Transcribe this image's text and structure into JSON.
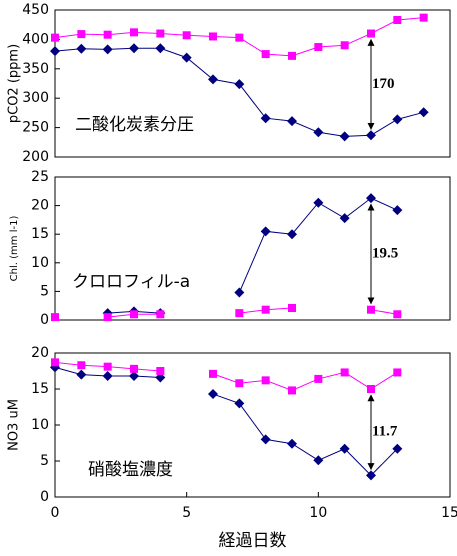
{
  "chart_data": [
    {
      "type": "line",
      "ylabel": "pCO2 (ppm)",
      "label": "二酸化炭素分圧",
      "annotation": "170",
      "x": [
        0,
        1,
        2,
        3,
        4,
        5,
        6,
        7,
        8,
        9,
        10,
        11,
        12,
        13,
        14
      ],
      "xlim": [
        0,
        15
      ],
      "ylim": [
        200,
        450
      ],
      "yticks": [
        200,
        250,
        300,
        350,
        400,
        450
      ],
      "series": [
        {
          "color": "#000080",
          "marker": "diamond",
          "values": [
            380,
            384,
            383,
            385,
            385,
            369,
            332,
            324,
            266,
            261,
            242,
            235,
            237,
            264,
            276
          ]
        },
        {
          "color": "#ff00ff",
          "marker": "square",
          "values": [
            403,
            409,
            408,
            412,
            410,
            407,
            405,
            403,
            375,
            372,
            387,
            390,
            410,
            433,
            437
          ]
        }
      ]
    },
    {
      "type": "line",
      "ylabel": "Chl. (mm l-1)",
      "label": "クロロフィル-a",
      "annotation": "19.5",
      "x": [
        0,
        1,
        2,
        3,
        4,
        5,
        6,
        7,
        8,
        9,
        10,
        11,
        12,
        13
      ],
      "xlim": [
        0,
        15
      ],
      "ylim": [
        0,
        25
      ],
      "yticks": [
        0,
        5,
        10,
        15,
        20,
        25
      ],
      "series": [
        {
          "color": "#000080",
          "marker": "diamond",
          "values": [
            null,
            null,
            1.2,
            1.5,
            1.2,
            null,
            null,
            4.8,
            15.5,
            15,
            20.5,
            17.8,
            21.3,
            19.2
          ]
        },
        {
          "color": "#ff00ff",
          "marker": "square",
          "values": [
            0.5,
            null,
            0.5,
            1,
            1,
            null,
            null,
            1.2,
            1.8,
            2.1,
            null,
            null,
            1.8,
            1
          ]
        }
      ]
    },
    {
      "type": "line",
      "ylabel": "NO3 uM",
      "label": "硝酸塩濃度",
      "annotation": "11.7",
      "xlabel": "経過日数",
      "x": [
        0,
        1,
        2,
        3,
        4,
        5,
        6,
        7,
        8,
        9,
        10,
        11,
        12,
        13
      ],
      "xlim": [
        0,
        15
      ],
      "xticks": [
        0,
        5,
        10,
        15
      ],
      "ylim": [
        0,
        20
      ],
      "yticks": [
        0,
        5,
        10,
        15,
        20
      ],
      "series": [
        {
          "color": "#000080",
          "marker": "diamond",
          "values": [
            18,
            17,
            16.8,
            16.8,
            16.6,
            null,
            14.3,
            13,
            8,
            7.4,
            5.1,
            6.7,
            3,
            6.7
          ]
        },
        {
          "color": "#ff00ff",
          "marker": "square",
          "values": [
            18.7,
            18.3,
            18.1,
            17.8,
            17.5,
            null,
            17.1,
            15.8,
            16.2,
            14.8,
            16.4,
            17.3,
            15,
            17.3
          ]
        }
      ]
    }
  ]
}
